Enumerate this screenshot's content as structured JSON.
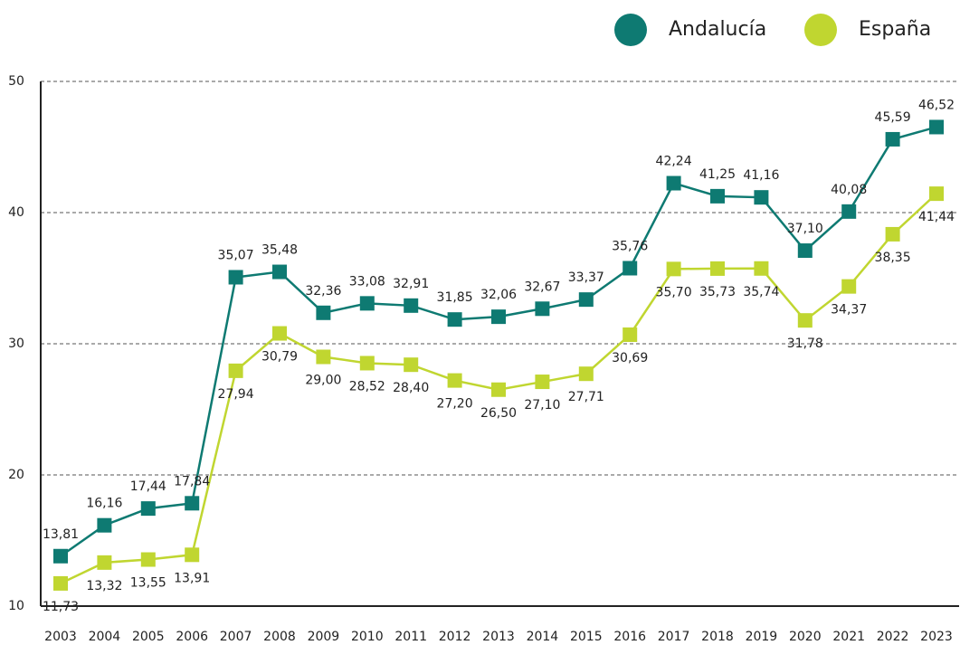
{
  "chart_data": {
    "type": "line",
    "categories": [
      "2003",
      "2004",
      "2005",
      "2006",
      "2007",
      "2008",
      "2009",
      "2010",
      "2011",
      "2012",
      "2013",
      "2014",
      "2015",
      "2016",
      "2017",
      "2018",
      "2019",
      "2020",
      "2021",
      "2022",
      "2023"
    ],
    "series": [
      {
        "name": "Andalucía",
        "color": "#0e7a72",
        "values": [
          13.81,
          16.16,
          17.44,
          17.84,
          35.07,
          35.48,
          32.36,
          33.08,
          32.91,
          31.85,
          32.06,
          32.67,
          33.37,
          35.76,
          42.24,
          41.25,
          41.16,
          37.1,
          40.08,
          45.59,
          46.52
        ],
        "value_labels": [
          "13,81",
          "16,16",
          "17,44",
          "17,84",
          "35,07",
          "35,48",
          "32,36",
          "33,08",
          "32,91",
          "31,85",
          "32,06",
          "32,67",
          "33,37",
          "35,76",
          "42,24",
          "41,25",
          "41,16",
          "37,10",
          "40,08",
          "45,59",
          "46,52"
        ]
      },
      {
        "name": "España",
        "color": "#c0d630",
        "values": [
          11.73,
          13.32,
          13.55,
          13.91,
          27.94,
          30.79,
          29.0,
          28.52,
          28.4,
          27.2,
          26.5,
          27.1,
          27.71,
          30.69,
          35.7,
          35.73,
          35.74,
          31.78,
          34.37,
          38.35,
          41.44
        ],
        "value_labels": [
          "11,73",
          "13,32",
          "13,55",
          "13,91",
          "27,94",
          "30,79",
          "29,00",
          "28,52",
          "28,40",
          "27,20",
          "26,50",
          "27,10",
          "27,71",
          "30,69",
          "35,70",
          "35,73",
          "35,74",
          "31,78",
          "34,37",
          "38,35",
          "41,44"
        ]
      }
    ],
    "ylim": [
      10,
      50
    ],
    "yticks": [
      10,
      20,
      30,
      40,
      50
    ],
    "grid": true,
    "legend": "top-right"
  }
}
